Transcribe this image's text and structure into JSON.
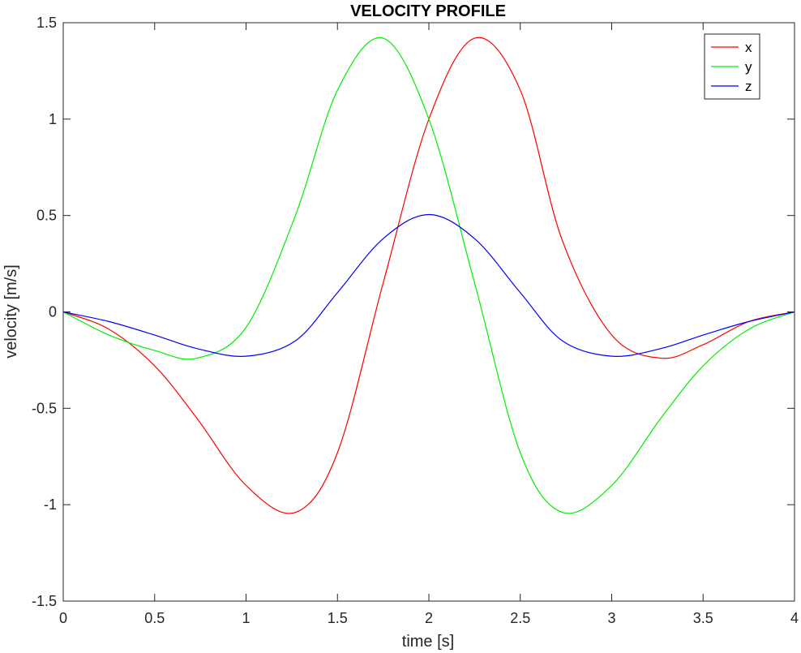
{
  "chart_data": {
    "type": "line",
    "title": "VELOCITY PROFILE",
    "xlabel": "time [s]",
    "ylabel": "velocity [m/s]",
    "xlim": [
      0,
      4
    ],
    "ylim": [
      -1.5,
      1.5
    ],
    "x_ticks": [
      0,
      0.5,
      1,
      1.5,
      2,
      2.5,
      3,
      3.5,
      4
    ],
    "x_tick_labels": [
      "0",
      "0.5",
      "1",
      "1.5",
      "2",
      "2.5",
      "3",
      "3.5",
      "4"
    ],
    "y_ticks": [
      -1.5,
      -1,
      -0.5,
      0,
      0.5,
      1,
      1.5
    ],
    "y_tick_labels": [
      "-1.5",
      "-1",
      "-0.5",
      "0",
      "0.5",
      "1",
      "1.5"
    ],
    "grid": false,
    "legend_position": "top-right",
    "x": [
      0,
      0.25,
      0.5,
      0.73,
      1.0,
      1.27,
      1.5,
      1.75,
      2.0,
      2.25,
      2.5,
      2.73,
      3.0,
      3.27,
      3.5,
      3.75,
      4.0
    ],
    "series": [
      {
        "name": "x",
        "color": "#ff0000",
        "values": [
          0,
          -0.09,
          -0.28,
          -0.55,
          -0.9,
          -1.04,
          -0.73,
          0.15,
          1.0,
          1.42,
          1.15,
          0.37,
          -0.12,
          -0.24,
          -0.17,
          -0.05,
          0
        ]
      },
      {
        "name": "y",
        "color": "#00ee00",
        "values": [
          0,
          -0.12,
          -0.2,
          -0.24,
          -0.08,
          0.5,
          1.15,
          1.42,
          1.0,
          0.15,
          -0.73,
          -1.04,
          -0.9,
          -0.55,
          -0.28,
          -0.09,
          0
        ]
      },
      {
        "name": "z",
        "color": "#0000ff",
        "values": [
          0,
          -0.05,
          -0.12,
          -0.19,
          -0.23,
          -0.15,
          0.1,
          0.38,
          0.505,
          0.38,
          0.1,
          -0.15,
          -0.23,
          -0.19,
          -0.12,
          -0.05,
          0
        ]
      }
    ]
  }
}
